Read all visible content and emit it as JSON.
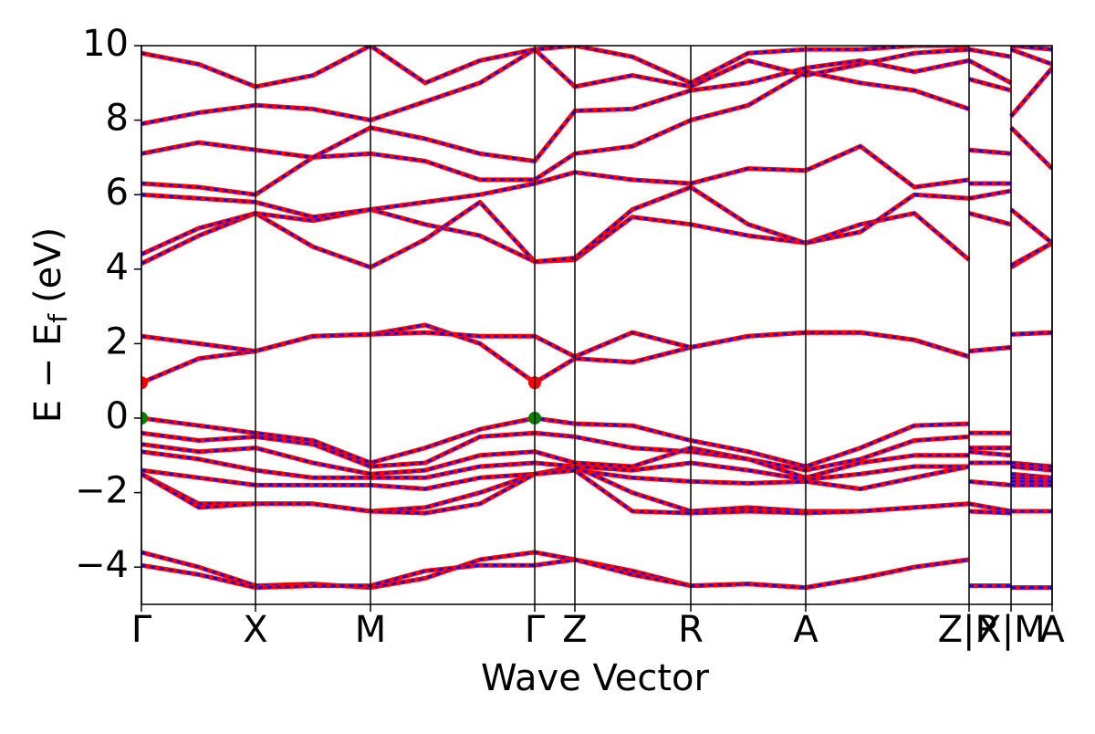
{
  "chart_data": {
    "type": "band",
    "xlabel": "Wave Vector",
    "ylabel": {
      "main": "E − E",
      "sub": "f",
      "unit": "(eV)"
    },
    "xlim": [
      0,
      9.98
    ],
    "ylim": [
      -5,
      10
    ],
    "yticks": [
      {
        "value": 10,
        "label": "10"
      },
      8,
      6,
      4,
      2,
      0,
      {
        "value": -2,
        "label": "−2"
      },
      {
        "value": -4,
        "label": "−4"
      }
    ],
    "xticks": [
      {
        "value": 0,
        "label": "Γ"
      },
      {
        "value": 1.25,
        "label": "X"
      },
      {
        "value": 2.51,
        "label": "M"
      },
      {
        "value": 4.31,
        "label": "Γ"
      },
      {
        "value": 4.75,
        "label": "Z"
      },
      {
        "value": 6.02,
        "label": "R"
      },
      {
        "value": 7.28,
        "label": "A"
      },
      {
        "value": 9.07,
        "label": "Z|R"
      },
      {
        "value": 9.53,
        "label": "X|M"
      },
      {
        "value": 9.98,
        "label": "A"
      }
    ],
    "color": "#ff0000",
    "dash_color": "#0000ff",
    "x": [
      0,
      0.63,
      1.25,
      1.88,
      2.51,
      3.11,
      3.71,
      4.31,
      4.75,
      5.38,
      6.02,
      6.65,
      7.28,
      7.88,
      8.47,
      9.07,
      9.07,
      9.07,
      9.53,
      9.53,
      9.53,
      9.98
    ],
    "series": [
      {
        "values": [
          -3.6,
          -4.0,
          -4.5,
          -4.45,
          -4.55,
          -4.3,
          -3.8,
          -3.6,
          -3.8,
          -4.1,
          -4.5,
          -4.45,
          -4.55,
          -4.3,
          -4.0,
          -3.8,
          null,
          -4.5,
          -4.5,
          null,
          -4.55,
          -4.55
        ]
      },
      {
        "values": [
          -3.95,
          -4.2,
          -4.55,
          -4.5,
          -4.5,
          -4.1,
          -3.95,
          -3.95,
          -3.8,
          -4.2,
          -4.5,
          -4.45,
          -4.55,
          -4.3,
          -4.0,
          -3.8,
          null,
          -4.5,
          -4.5,
          null,
          -4.55,
          -4.55
        ]
      },
      {
        "values": [
          0,
          -0.2,
          -0.4,
          -0.6,
          -1.2,
          -0.8,
          -0.3,
          0,
          -0.15,
          -0.2,
          -0.6,
          -0.9,
          -1.3,
          -0.8,
          -0.2,
          -0.15,
          null,
          -0.4,
          -0.4,
          null,
          -1.2,
          -1.3
        ]
      },
      {
        "values": [
          -0.4,
          -0.6,
          -0.5,
          -0.7,
          -1.3,
          -1.2,
          -0.5,
          -0.4,
          -0.5,
          -0.8,
          -0.9,
          -1.1,
          -1.4,
          -1.1,
          -0.6,
          -0.5,
          null,
          -0.8,
          -0.8,
          null,
          -1.3,
          -1.4
        ]
      },
      {
        "values": [
          -0.7,
          -0.9,
          -0.8,
          -1.2,
          -1.5,
          -1.4,
          -1.0,
          -0.9,
          -1.2,
          -1.3,
          -0.8,
          -1.1,
          -1.6,
          -1.2,
          -1.0,
          -1.0,
          null,
          -0.9,
          -1.0,
          null,
          -1.5,
          -1.6
        ]
      },
      {
        "values": [
          -0.9,
          -1.1,
          -1.4,
          -1.6,
          -1.6,
          -1.6,
          -1.3,
          -1.2,
          -1.3,
          -1.4,
          -1.2,
          -1.4,
          -1.65,
          -1.5,
          -1.3,
          -1.3,
          null,
          -1.2,
          -1.2,
          null,
          -1.6,
          -1.65
        ]
      },
      {
        "values": [
          -1.4,
          -1.6,
          -1.8,
          -1.8,
          -1.8,
          -1.9,
          -1.6,
          -1.5,
          -1.4,
          -1.6,
          -1.7,
          -1.75,
          -1.7,
          -1.9,
          -1.6,
          -1.3,
          null,
          -1.7,
          -1.8,
          null,
          -1.7,
          -1.7
        ]
      },
      {
        "values": [
          -1.5,
          -2.3,
          -2.3,
          -2.3,
          -2.5,
          -2.4,
          -2.0,
          -1.5,
          -1.3,
          -2.0,
          -2.5,
          -2.4,
          -2.5,
          -2.5,
          -2.4,
          -2.3,
          null,
          -2.3,
          -2.5,
          null,
          -1.8,
          -1.8
        ]
      },
      {
        "values": [
          -1.5,
          -2.4,
          -2.3,
          -2.3,
          -2.5,
          -2.55,
          -2.3,
          -1.5,
          -1.4,
          -2.5,
          -2.55,
          -2.5,
          -2.55,
          -2.5,
          -2.4,
          -2.3,
          null,
          -2.5,
          -2.55,
          null,
          -2.5,
          -2.5
        ]
      },
      {
        "values": [
          0.95,
          1.6,
          1.8,
          2.2,
          2.25,
          2.5,
          2.0,
          0.95,
          1.6,
          1.5,
          1.9,
          2.2,
          2.3,
          2.3,
          2.1,
          1.65,
          null,
          1.8,
          1.9,
          null,
          2.25,
          2.3
        ]
      },
      {
        "values": [
          2.2,
          2.0,
          1.8,
          2.2,
          2.25,
          2.3,
          2.2,
          2.2,
          1.65,
          2.3,
          1.9,
          2.2,
          2.3,
          2.3,
          2.1,
          1.65,
          null,
          1.8,
          1.9,
          null,
          2.25,
          2.3
        ]
      },
      {
        "values": [
          4.15,
          4.9,
          5.5,
          4.6,
          4.05,
          4.8,
          5.8,
          4.2,
          4.25,
          5.4,
          5.2,
          4.9,
          4.7,
          5.2,
          5.5,
          4.25,
          null,
          5.5,
          5.2,
          null,
          4.05,
          4.7
        ]
      },
      {
        "values": [
          4.4,
          5.1,
          5.5,
          5.3,
          5.6,
          5.2,
          4.9,
          4.2,
          4.3,
          5.6,
          6.2,
          5.2,
          4.7,
          5.0,
          6.0,
          5.9,
          null,
          5.9,
          6.1,
          null,
          4.1,
          4.7
        ]
      },
      {
        "values": [
          6.0,
          5.9,
          5.8,
          5.4,
          5.6,
          5.8,
          6.0,
          6.3,
          6.6,
          6.4,
          6.3,
          6.7,
          6.65,
          7.3,
          6.2,
          6.4,
          null,
          6.3,
          6.3,
          null,
          5.6,
          4.7
        ]
      },
      {
        "values": [
          6.3,
          6.2,
          6.0,
          7.0,
          7.1,
          6.9,
          6.4,
          6.4,
          7.1,
          7.3,
          8.0,
          8.4,
          9.3,
          9.0,
          8.8,
          8.3,
          null,
          7.2,
          7.1,
          null,
          7.8,
          6.7
        ]
      },
      {
        "values": [
          7.1,
          7.4,
          7.2,
          7.0,
          7.8,
          7.5,
          7.1,
          6.9,
          8.25,
          8.3,
          8.8,
          9.0,
          9.4,
          9.6,
          9.3,
          9.6,
          null,
          9.1,
          8.8,
          null,
          8.1,
          9.4
        ]
      },
      {
        "values": [
          7.9,
          8.2,
          8.4,
          8.3,
          8.0,
          8.5,
          9.0,
          9.9,
          8.9,
          9.2,
          8.9,
          9.6,
          9.2,
          9.5,
          9.8,
          9.9,
          null,
          9.6,
          9.0,
          null,
          9.9,
          9.5
        ]
      },
      {
        "values": [
          9.8,
          9.5,
          8.9,
          9.2,
          10.0,
          9.0,
          9.6,
          9.9,
          10.0,
          9.7,
          9.0,
          9.8,
          9.9,
          9.9,
          10.0,
          10.0,
          null,
          9.9,
          9.7,
          null,
          10.0,
          9.9
        ]
      }
    ],
    "points": [
      {
        "color": "#008000",
        "x": [
          0,
          4.31
        ],
        "y": [
          0,
          0
        ]
      },
      {
        "color": "#ff0000",
        "x": [
          0,
          4.31
        ],
        "y": [
          0.95,
          0.95
        ]
      }
    ]
  }
}
